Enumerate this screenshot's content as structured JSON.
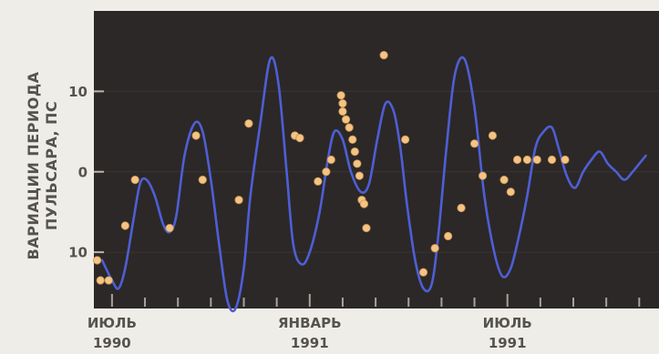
{
  "chart_data": {
    "type": "line",
    "title": "",
    "ylabel_lines": [
      "ВАРИАЦИИ ПЕРИОДА",
      "ПУЛЬСАРА, ПС"
    ],
    "xlabel": "",
    "ylim": [
      -17,
      20
    ],
    "y_ticks": [
      {
        "value": 10,
        "label": "10"
      },
      {
        "value": 0,
        "label": "0"
      },
      {
        "value": -10,
        "label": "10"
      }
    ],
    "x_label_ticks": [
      {
        "value": 0,
        "month": "ИЮЛЬ",
        "year": "1990"
      },
      {
        "value": 6,
        "month": "ЯНВАРЬ",
        "year": "1991"
      },
      {
        "value": 12,
        "month": "ИЮЛЬ",
        "year": "1991"
      }
    ],
    "x_range_months": [
      -0.55,
      16.6
    ],
    "curve": {
      "color": "#4d5fd6",
      "x": [
        -0.3,
        0,
        0.2,
        0.4,
        0.65,
        0.85,
        1.05,
        1.3,
        1.55,
        1.75,
        1.95,
        2.2,
        2.5,
        2.75,
        3.0,
        3.25,
        3.5,
        3.75,
        4.0,
        4.2,
        4.5,
        4.8,
        5.05,
        5.3,
        5.5,
        5.75,
        6.0,
        6.3,
        6.55,
        6.75,
        7.0,
        7.25,
        7.55,
        7.8,
        8.05,
        8.3,
        8.55,
        8.75,
        8.95,
        9.2,
        9.45,
        9.7,
        9.9,
        10.15,
        10.4,
        10.7,
        11.0,
        11.3,
        11.6,
        11.85,
        12.1,
        12.35,
        12.6,
        12.85,
        13.1,
        13.35,
        13.55,
        13.8,
        14.05,
        14.3,
        14.55,
        14.8,
        15.05,
        15.3,
        15.55,
        15.8,
        16.0,
        16.2
      ],
      "y": [
        -11,
        -13.5,
        -14.5,
        -12,
        -6,
        -1.5,
        -1,
        -3,
        -6.5,
        -7.5,
        -5.5,
        2,
        6,
        5,
        -1,
        -9,
        -16,
        -17,
        -12,
        -3,
        6,
        14,
        11,
        0,
        -9,
        -11.5,
        -10,
        -5,
        1.5,
        5,
        4,
        0,
        -2.5,
        -1.5,
        4,
        8.5,
        7.5,
        3,
        -4,
        -11,
        -14.5,
        -14,
        -8,
        3,
        12,
        14,
        8,
        -3,
        -10,
        -13,
        -12,
        -8,
        -3,
        3,
        5,
        5.5,
        3,
        -0.5,
        -2,
        0,
        1.5,
        2.5,
        1,
        0,
        -1,
        0,
        1,
        2
      ]
    },
    "points": {
      "color": "#f3c486",
      "x": [
        -0.45,
        -0.35,
        -0.1,
        0.4,
        0.7,
        1.75,
        2.55,
        2.75,
        3.85,
        4.15,
        5.55,
        5.7,
        6.25,
        6.5,
        6.65,
        6.95,
        7.0,
        7.0,
        7.1,
        7.2,
        7.3,
        7.37,
        7.44,
        7.51,
        7.58,
        7.65,
        7.72,
        8.25,
        8.9,
        9.45,
        9.8,
        10.2,
        10.6,
        11.0,
        11.25,
        11.55,
        11.9,
        12.1,
        12.3,
        12.6,
        12.9,
        13.35,
        13.75
      ],
      "y": [
        -11,
        -13.5,
        -13.5,
        -6.7,
        -1,
        -7,
        4.5,
        -1,
        -3.5,
        6,
        4.5,
        4.2,
        -1.2,
        0,
        1.5,
        9.5,
        8.5,
        7.5,
        6.5,
        5.5,
        4,
        2.5,
        1,
        -0.5,
        -3.5,
        -4,
        -7,
        14.5,
        4,
        -12.5,
        -9.5,
        -8,
        -4.5,
        3.5,
        -0.5,
        4.5,
        -1,
        -2.5,
        1.5,
        1.5,
        1.5,
        1.5,
        1.5
      ]
    }
  }
}
